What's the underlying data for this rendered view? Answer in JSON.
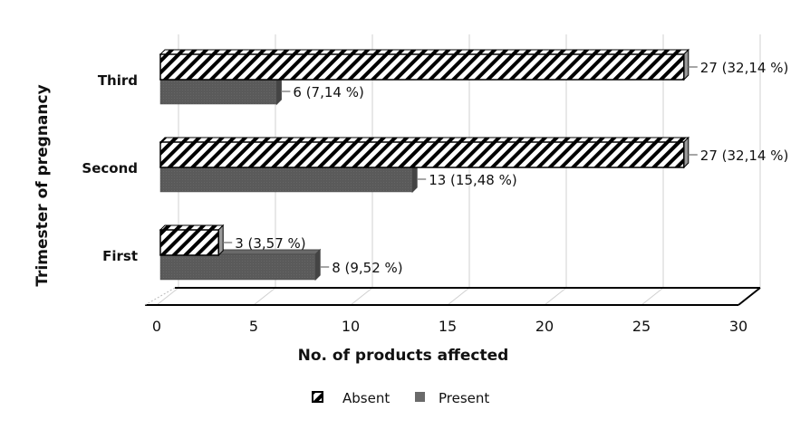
{
  "chart_data": {
    "type": "bar",
    "orientation": "horizontal",
    "categories": [
      "First",
      "Second",
      "Third"
    ],
    "series": [
      {
        "name": "Absent",
        "values": [
          3,
          27,
          27
        ],
        "labels": [
          "3 (3,57 %)",
          "27 (32,14 %)",
          "27 (32,14 %)"
        ],
        "color": "#000000",
        "pattern": "diagonal-hatch"
      },
      {
        "name": "Present",
        "values": [
          8,
          13,
          6
        ],
        "labels": [
          "8 (9,52 %)",
          "13 (15,48 %)",
          "6 (7,14 %)"
        ],
        "color": "#5a5a5a"
      }
    ],
    "xlabel": "No. of products affected",
    "ylabel": "Trimester of pregnancy",
    "xlim": [
      0,
      30
    ],
    "xticks": [
      "0",
      "5",
      "10",
      "15",
      "20",
      "25",
      "30"
    ],
    "grid": true,
    "legend_position": "bottom"
  }
}
